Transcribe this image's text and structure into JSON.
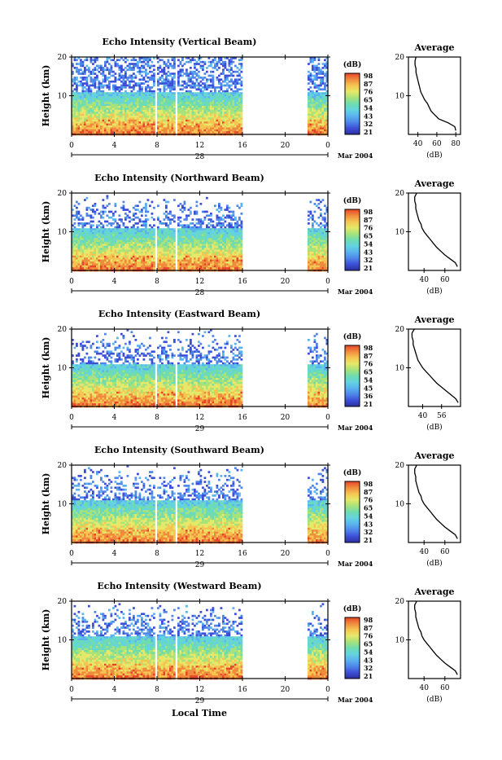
{
  "figure": {
    "xlabel": "Local Time",
    "date_label": "Mar 2004",
    "colorbar_unit": "(dB)",
    "avg_title": "Average",
    "avg_xlabel": "(dB)",
    "ylabel": "Height (km)"
  },
  "colors": {
    "colorbar": [
      "#2b2f9e",
      "#3d4fd6",
      "#4f86ea",
      "#5ab3ee",
      "#63d3e0",
      "#6fdcb0",
      "#a7e27a",
      "#e6e86a",
      "#f5c552",
      "#f08b3e",
      "#e6452a"
    ]
  },
  "chart_data": [
    {
      "type": "heatmap",
      "title": "Echo Intensity (Vertical Beam)",
      "day": "28",
      "ylim": [
        0,
        20
      ],
      "yticks": [
        "20",
        "10"
      ],
      "xlim": [
        0,
        24
      ],
      "xticks": [
        "0",
        "4",
        "8",
        "12",
        "16",
        "20",
        "0"
      ],
      "colorbar_ticks": [
        "98",
        "87",
        "76",
        "65",
        "54",
        "43",
        "32",
        "21"
      ],
      "data_gaps_hours": [
        [
          16,
          22
        ]
      ],
      "average_profile": {
        "xticks": [
          "40",
          "60",
          "80"
        ],
        "xlim": [
          30,
          85
        ],
        "ylim": [
          0,
          20
        ],
        "yticks": [
          "20",
          "10"
        ],
        "height_km": [
          1,
          2,
          3,
          4,
          5,
          6,
          7,
          8,
          9,
          10,
          11,
          12,
          13,
          14,
          15,
          16,
          17,
          18,
          19,
          20
        ],
        "db": [
          80,
          79,
          72,
          62,
          58,
          54,
          52,
          50,
          47,
          45,
          43,
          42,
          41,
          40,
          39,
          38,
          38,
          37,
          37,
          38
        ]
      }
    },
    {
      "type": "heatmap",
      "title": "Echo Intensity (Northward Beam)",
      "day": "28",
      "ylim": [
        0,
        20
      ],
      "yticks": [
        "20",
        "10"
      ],
      "xlim": [
        0,
        24
      ],
      "xticks": [
        "0",
        "4",
        "8",
        "12",
        "16",
        "20",
        "0"
      ],
      "colorbar_ticks": [
        "98",
        "87",
        "76",
        "65",
        "54",
        "43",
        "32",
        "21"
      ],
      "data_gaps_hours": [
        [
          16,
          22
        ]
      ],
      "average_profile": {
        "xticks": [
          "40",
          "60"
        ],
        "xlim": [
          25,
          75
        ],
        "ylim": [
          0,
          20
        ],
        "yticks": [
          "20",
          "10"
        ],
        "height_km": [
          1,
          2,
          3,
          4,
          5,
          6,
          7,
          8,
          9,
          10,
          11,
          12,
          13,
          14,
          15,
          16,
          17,
          18,
          19,
          20
        ],
        "db": [
          72,
          70,
          65,
          60,
          56,
          52,
          49,
          46,
          43,
          40,
          38,
          37,
          35,
          34,
          33,
          32,
          32,
          31,
          31,
          33
        ]
      }
    },
    {
      "type": "heatmap",
      "title": "Echo Intensity (Eastward Beam)",
      "day": "29",
      "ylim": [
        0,
        20
      ],
      "yticks": [
        "20",
        "10"
      ],
      "xlim": [
        0,
        24
      ],
      "xticks": [
        "0",
        "4",
        "8",
        "12",
        "16",
        "20",
        "0"
      ],
      "colorbar_ticks": [
        "98",
        "87",
        "76",
        "65",
        "54",
        "45",
        "36",
        "21"
      ],
      "data_gaps_hours": [
        [
          16,
          22
        ]
      ],
      "average_profile": {
        "xticks": [
          "40",
          "56"
        ],
        "xlim": [
          28,
          72
        ],
        "ylim": [
          0,
          20
        ],
        "yticks": [
          "20",
          "10"
        ],
        "height_km": [
          1,
          2,
          3,
          4,
          5,
          6,
          7,
          8,
          9,
          10,
          11,
          12,
          13,
          14,
          15,
          16,
          17,
          18,
          19,
          20
        ],
        "db": [
          70,
          68,
          64,
          60,
          56,
          52,
          49,
          46,
          43,
          40,
          38,
          36,
          35,
          34,
          33,
          32,
          32,
          31,
          31,
          33
        ]
      }
    },
    {
      "type": "heatmap",
      "title": "Echo Intensity (Southward Beam)",
      "day": "29",
      "ylim": [
        0,
        20
      ],
      "yticks": [
        "20",
        "10"
      ],
      "xlim": [
        0,
        24
      ],
      "xticks": [
        "0",
        "4",
        "8",
        "12",
        "16",
        "20",
        "0"
      ],
      "colorbar_ticks": [
        "98",
        "87",
        "76",
        "65",
        "54",
        "43",
        "32",
        "21"
      ],
      "data_gaps_hours": [
        [
          16,
          22
        ]
      ],
      "average_profile": {
        "xticks": [
          "40",
          "60"
        ],
        "xlim": [
          25,
          75
        ],
        "ylim": [
          0,
          20
        ],
        "yticks": [
          "20",
          "10"
        ],
        "height_km": [
          1,
          2,
          3,
          4,
          5,
          6,
          7,
          8,
          9,
          10,
          11,
          12,
          13,
          14,
          15,
          16,
          17,
          18,
          19,
          20
        ],
        "db": [
          72,
          70,
          65,
          60,
          56,
          52,
          49,
          46,
          43,
          40,
          38,
          37,
          35,
          34,
          33,
          32,
          32,
          31,
          31,
          33
        ]
      }
    },
    {
      "type": "heatmap",
      "title": "Echo Intensity (Westward Beam)",
      "day": "29",
      "ylim": [
        0,
        20
      ],
      "yticks": [
        "20",
        "10"
      ],
      "xlim": [
        0,
        24
      ],
      "xticks": [
        "0",
        "4",
        "8",
        "12",
        "16",
        "20",
        "0"
      ],
      "colorbar_ticks": [
        "98",
        "87",
        "76",
        "65",
        "54",
        "43",
        "32",
        "21"
      ],
      "data_gaps_hours": [
        [
          16,
          22
        ]
      ],
      "average_profile": {
        "xticks": [
          "40",
          "60"
        ],
        "xlim": [
          25,
          75
        ],
        "ylim": [
          0,
          20
        ],
        "yticks": [
          "20",
          "10"
        ],
        "height_km": [
          1,
          2,
          3,
          4,
          5,
          6,
          7,
          8,
          9,
          10,
          11,
          12,
          13,
          14,
          15,
          16,
          17,
          18,
          19,
          20
        ],
        "db": [
          72,
          70,
          65,
          60,
          56,
          52,
          49,
          46,
          43,
          40,
          38,
          37,
          35,
          34,
          33,
          32,
          32,
          31,
          31,
          33
        ]
      }
    }
  ]
}
